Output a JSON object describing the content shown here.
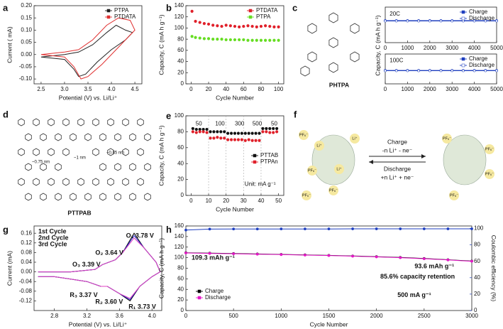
{
  "chart_data": [
    {
      "type": "line",
      "panel": "a",
      "xlabel": "Potential (V) vs. Li/Li⁺",
      "ylabel": "Current ( mA)",
      "xlim": [
        2.35,
        4.65
      ],
      "ylim": [
        -0.12,
        0.2
      ],
      "xticks": [
        2.5,
        {
          "value": 3,
          "label": "3.0"
        },
        3.5,
        {
          "value": 4,
          "label": "4.0"
        },
        4.5
      ],
      "yticks": [
        {
          "value": -0.1,
          "label": "-0.10"
        },
        -0.05,
        {
          "value": 0,
          "label": "0.00"
        },
        0.05,
        {
          "value": 0.1,
          "label": "0.10"
        },
        0.15,
        {
          "value": 0.2,
          "label": "0.20"
        }
      ],
      "legend": "upper right",
      "series": [
        {
          "name": "PTPA",
          "color": "#222222",
          "x": [
            2.5,
            3.0,
            3.2,
            3.3,
            3.45,
            3.7,
            4.0,
            4.3,
            4.45,
            4.3,
            4.1,
            3.9,
            3.6,
            3.3,
            3.0,
            2.5
          ],
          "values": [
            -0.01,
            -0.02,
            -0.06,
            -0.09,
            -0.08,
            -0.03,
            0.02,
            0.06,
            0.09,
            0.1,
            0.12,
            0.09,
            0.04,
            0.01,
            0.0,
            -0.01
          ]
        },
        {
          "name": "PTDATA",
          "color": "#e03030",
          "x": [
            2.5,
            3.0,
            3.2,
            3.35,
            3.5,
            3.8,
            4.1,
            4.3,
            4.5,
            4.4,
            4.15,
            3.9,
            3.6,
            3.3,
            3.0,
            2.5
          ],
          "values": [
            0.0,
            -0.01,
            -0.05,
            -0.1,
            -0.09,
            -0.04,
            0.02,
            0.06,
            0.1,
            0.14,
            0.15,
            0.12,
            0.06,
            0.02,
            0.01,
            0.0
          ]
        }
      ]
    },
    {
      "type": "scatter",
      "panel": "b",
      "xlabel": "Cycle Number",
      "ylabel": "Capacity, C (mA h g⁻¹)",
      "xlim": [
        -6,
        106
      ],
      "ylim": [
        0,
        140
      ],
      "xticks": [
        0,
        20,
        40,
        60,
        80,
        100
      ],
      "yticks": [
        0,
        20,
        40,
        60,
        80,
        100,
        120,
        140
      ],
      "legend": "upper right",
      "series": [
        {
          "name": "PTDATA",
          "color": "#e0202a",
          "x": [
            1,
            5,
            10,
            15,
            20,
            25,
            30,
            35,
            40,
            45,
            50,
            55,
            60,
            65,
            70,
            75,
            80,
            85,
            90,
            95,
            100
          ],
          "values": [
            130,
            112,
            110,
            108,
            107,
            105,
            104,
            103,
            105,
            104,
            103,
            102,
            103,
            104,
            103,
            102,
            103,
            104,
            103,
            102,
            102
          ]
        },
        {
          "name": "PTPA",
          "color": "#66dd22",
          "x": [
            1,
            5,
            10,
            15,
            20,
            25,
            30,
            35,
            40,
            45,
            50,
            55,
            60,
            65,
            70,
            75,
            80,
            85,
            90,
            95,
            100
          ],
          "values": [
            85,
            83,
            82,
            81,
            81,
            80,
            80,
            80,
            79,
            79,
            79,
            79,
            79,
            78,
            78,
            78,
            78,
            78,
            78,
            78,
            78
          ]
        }
      ]
    },
    {
      "type": "line",
      "markers": true,
      "panel": "c",
      "ylabel": "Capacity, C (mA h g⁻¹)",
      "annotations": [
        "20C"
      ],
      "xlim": [
        0,
        5000
      ],
      "ylim": [
        0,
        100
      ],
      "xticks": [
        0,
        1000,
        2000,
        3000,
        4000,
        5000
      ],
      "yticks": [],
      "legend": "upper right",
      "series": [
        {
          "name": "Charge",
          "color": "#1f3fbf",
          "x": [
            0,
            500,
            1000,
            1500,
            2000,
            2500,
            3000,
            3500,
            4000,
            4500,
            5000
          ],
          "values": [
            62,
            62,
            62,
            62,
            62,
            62,
            62,
            62,
            62,
            62,
            62
          ]
        },
        {
          "name": "Discharge",
          "color": "#ffffff",
          "x": [
            0,
            500,
            1000,
            1500,
            2000,
            2500,
            3000,
            3500,
            4000,
            4500,
            5000
          ],
          "values": [
            61,
            61,
            61,
            61,
            61,
            61,
            61,
            61,
            61,
            61,
            61
          ]
        }
      ]
    },
    {
      "type": "line",
      "markers": true,
      "annotations": [
        "100C"
      ],
      "xlim": [
        0,
        5000
      ],
      "ylim": [
        0,
        100
      ],
      "xticks": [
        0,
        1000,
        2000,
        3000,
        4000,
        5000
      ],
      "yticks": [],
      "legend": "upper right",
      "series": [
        {
          "name": "Charge",
          "color": "#1f3fbf",
          "x": [
            0,
            500,
            1000,
            1500,
            2000,
            2500,
            3000,
            3500,
            4000,
            4500,
            5000
          ],
          "values": [
            45,
            45,
            45,
            45,
            45,
            45,
            45,
            45,
            45,
            45,
            45
          ]
        },
        {
          "name": "Discharge",
          "color": "#ffffff",
          "x": [
            0,
            500,
            1000,
            1500,
            2000,
            2500,
            3000,
            3500,
            4000,
            4500,
            5000
          ],
          "values": [
            44,
            44,
            44,
            44,
            44,
            44,
            44,
            44,
            44,
            44,
            44
          ]
        }
      ]
    },
    {
      "type": "scatter",
      "panel": "e",
      "xlabel": "Cycle Number",
      "ylabel": "Capacity, C (mA h g⁻¹)",
      "dividers": true,
      "annotations": [
        "50",
        "100",
        "300",
        "500",
        "50",
        "Unit: mA g⁻¹"
      ],
      "xlim": [
        -3,
        53
      ],
      "ylim": [
        0,
        100
      ],
      "xticks": [
        0,
        10,
        20,
        30,
        40,
        50
      ],
      "yticks": [
        0,
        20,
        40,
        60,
        80,
        100
      ],
      "legend": "center right",
      "series": [
        {
          "name": "PTTAB",
          "color": "#111111",
          "x": [
            1,
            3,
            5,
            7,
            9,
            11,
            13,
            15,
            17,
            19,
            21,
            23,
            25,
            27,
            29,
            31,
            33,
            35,
            37,
            39,
            41,
            43,
            45,
            47,
            49
          ],
          "values": [
            84,
            83,
            83,
            83,
            83,
            80,
            80,
            80,
            80,
            80,
            78,
            78,
            78,
            78,
            78,
            78,
            78,
            78,
            78,
            78,
            84,
            84,
            84,
            84,
            84
          ]
        },
        {
          "name": "PTPAn",
          "color": "#e0202a",
          "x": [
            1,
            3,
            5,
            7,
            9,
            11,
            13,
            15,
            17,
            19,
            21,
            23,
            25,
            27,
            29,
            31,
            33,
            35,
            37,
            39,
            41,
            43,
            45,
            47,
            49
          ],
          "values": [
            80,
            79,
            80,
            80,
            79,
            72,
            72,
            73,
            72,
            72,
            70,
            70,
            70,
            70,
            70,
            69,
            70,
            69,
            69,
            69,
            80,
            80,
            79,
            79,
            80
          ]
        }
      ]
    },
    {
      "type": "line",
      "panel": "g",
      "xlabel": "Potential (V) vs. Li/Li⁺",
      "ylabel": "Current (mA)",
      "annotation_color": "#c020b0",
      "annotations": [
        "O₁ 3.78 V",
        "O₂ 3.64 V",
        "O₃ 3.39 V",
        "R₃ 3.37 V",
        "R₂ 3.60 V",
        "R₁ 3.73 V"
      ],
      "xlim": [
        2.55,
        4.12
      ],
      "ylim": [
        -0.16,
        0.19
      ],
      "xticks": [
        2.8,
        3.2,
        3.6,
        {
          "value": 4,
          "label": "4.0"
        }
      ],
      "yticks": [
        -0.12,
        -0.08,
        -0.04,
        {
          "value": 0,
          "label": "0.00"
        },
        0.04,
        0.08,
        0.12,
        0.16
      ],
      "legend": "upper left",
      "series": [
        {
          "name": "1st Cycle",
          "color": "#000000",
          "x": [
            2.6,
            3.0,
            3.3,
            3.39,
            3.55,
            3.64,
            3.78,
            3.9,
            4.05,
            4.1,
            4.0,
            3.85,
            3.73,
            3.6,
            3.45,
            3.37,
            3.2,
            3.0,
            2.8,
            2.6
          ],
          "values": [
            0.0,
            0.0,
            0.01,
            0.03,
            0.05,
            0.08,
            0.16,
            0.1,
            0.04,
            0.0,
            -0.02,
            -0.06,
            -0.12,
            -0.09,
            -0.06,
            -0.06,
            -0.04,
            -0.03,
            -0.02,
            -0.02
          ]
        },
        {
          "name": "2nd Cycle",
          "color": "#2b2bd6",
          "x": [
            2.6,
            3.0,
            3.3,
            3.39,
            3.55,
            3.64,
            3.78,
            3.9,
            4.05,
            4.1,
            4.0,
            3.85,
            3.73,
            3.6,
            3.45,
            3.37,
            3.2,
            3.0,
            2.8,
            2.6
          ],
          "values": [
            0.0,
            0.0,
            0.01,
            0.03,
            0.05,
            0.08,
            0.15,
            0.1,
            0.04,
            0.0,
            -0.02,
            -0.06,
            -0.115,
            -0.09,
            -0.06,
            -0.06,
            -0.04,
            -0.03,
            -0.02,
            -0.02
          ]
        },
        {
          "name": "3rd Cycle",
          "color": "#e040c0",
          "x": [
            2.6,
            3.0,
            3.3,
            3.39,
            3.55,
            3.64,
            3.78,
            3.9,
            4.05,
            4.1,
            4.0,
            3.85,
            3.73,
            3.6,
            3.45,
            3.37,
            3.2,
            3.0,
            2.8,
            2.6
          ],
          "values": [
            0.0,
            0.0,
            0.01,
            0.03,
            0.05,
            0.08,
            0.14,
            0.1,
            0.04,
            0.0,
            -0.02,
            -0.06,
            -0.11,
            -0.09,
            -0.06,
            -0.06,
            -0.04,
            -0.03,
            -0.02,
            -0.02
          ]
        }
      ]
    },
    {
      "type": "line",
      "markers": true,
      "panel": "h",
      "xlabel": "Cycle Number",
      "ylabel": "Capacity, C (mA h g⁻¹)",
      "y2label": "Coulombic efficiency (%)",
      "annotations": [
        "109.3 mAh g⁻¹",
        "93.6 mAh g⁻¹",
        "85.6% capacity retention",
        "500 mA g⁻¹"
      ],
      "xlim": [
        0,
        3000
      ],
      "ylim": [
        0,
        160
      ],
      "y2lim": [
        0,
        103
      ],
      "xticks": [
        0,
        500,
        1000,
        1500,
        2000,
        2500,
        3000
      ],
      "yticks": [
        0,
        20,
        40,
        60,
        80,
        100,
        120,
        140,
        160
      ],
      "y2ticks": [
        0,
        20,
        40,
        60,
        80,
        100
      ],
      "legend": "lower left",
      "series": [
        {
          "name": "Charge",
          "color": "#000000",
          "x": [
            0,
            250,
            500,
            750,
            1000,
            1250,
            1500,
            1750,
            2000,
            2250,
            2500,
            2750,
            3000
          ],
          "values": [
            109.3,
            108.5,
            107.8,
            107,
            106.2,
            105.3,
            104.4,
            103.2,
            101.9,
            100.4,
            98.4,
            96.1,
            93.6
          ]
        },
        {
          "name": "Discharge",
          "color": "#e619c8",
          "x": [
            0,
            250,
            500,
            750,
            1000,
            1250,
            1500,
            1750,
            2000,
            2250,
            2500,
            2750,
            3000
          ],
          "values": [
            108.9,
            108.1,
            107.4,
            106.6,
            105.8,
            104.9,
            104,
            102.8,
            101.5,
            100,
            98,
            95.7,
            93.2
          ]
        },
        {
          "name": null,
          "color": "#1f3fbf",
          "axis": "y2",
          "x": [
            0,
            250,
            500,
            750,
            1000,
            1250,
            1500,
            1750,
            2000,
            2250,
            2500,
            2750,
            3000
          ],
          "values": [
            98,
            99.2,
            99.3,
            99.3,
            99.4,
            99.4,
            99.4,
            99.5,
            99.5,
            99.5,
            99.5,
            99.5,
            99.5
          ]
        }
      ]
    }
  ],
  "diagrams": {
    "c": {
      "name": "PHTPA"
    },
    "d": {
      "panel": "d",
      "name": "PTTPAB",
      "dims": [
        "~0.75 nm",
        "~1 nm",
        "~0.85 nm"
      ]
    },
    "f": {
      "panel": "f",
      "charge": "Charge",
      "charge_eq": "-n Li⁺ - ne⁻",
      "discharge": "Discharge",
      "discharge_eq": "+n Li⁺ + ne⁻",
      "ions": [
        "PF₆⁻",
        "Li⁺",
        "PF₆⁻",
        "Li⁺",
        "PF₆⁻",
        "PF₆⁻",
        "Li⁺",
        "PF₆⁻",
        "PF₆⁻",
        "PF₆⁻",
        "PF₆⁻"
      ]
    }
  }
}
